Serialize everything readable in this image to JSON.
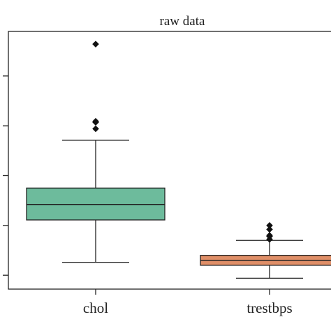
{
  "chart_data": {
    "type": "boxplot",
    "title": "raw data",
    "xlabel": "",
    "ylabel": "",
    "categories": [
      "chol",
      "trestbps"
    ],
    "ylim": [
      0,
      600
    ],
    "y_ticks": [
      100,
      200,
      300,
      400,
      500
    ],
    "y_tick_labels_visible": false,
    "grid": false,
    "boxes": [
      {
        "label": "chol",
        "color": "#6dbb9c",
        "whisker_low": 126,
        "q1": 211,
        "median": 242,
        "q3": 275,
        "whisker_high": 371,
        "outliers": [
          409,
          407,
          394,
          564
        ]
      },
      {
        "label": "trestbps",
        "color": "#e08f68",
        "whisker_low": 94,
        "q1": 120,
        "median": 130,
        "q3": 140,
        "whisker_high": 170,
        "outliers": [
          172,
          178,
          180,
          192,
          200
        ]
      }
    ]
  }
}
